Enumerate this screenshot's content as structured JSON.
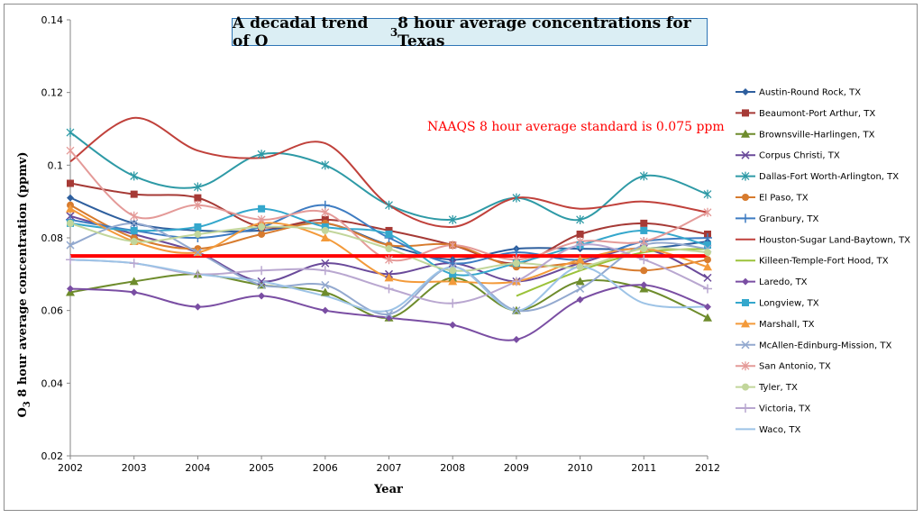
{
  "chart_data": {
    "type": "line",
    "title_prefix": "A decadal trend of O",
    "title_sub": "3",
    "title_suffix": " 8 hour average concentrations for Texas",
    "xlabel": "Year",
    "ylabel_prefix": "O",
    "ylabel_sub": "3",
    "ylabel_suffix": " 8 hour average concentration (ppmv)",
    "annotation": "NAAQS  8 hour average  standard is 0.075 ppm",
    "standard_value": 0.075,
    "standard_color": "#ff0000",
    "x": [
      "2002",
      "2003",
      "2004",
      "2005",
      "2006",
      "2007",
      "2008",
      "2009",
      "2010",
      "2011",
      "2012"
    ],
    "ylim": [
      0.02,
      0.14
    ],
    "yticks": [
      "0.02",
      "0.04",
      "0.06",
      "0.08",
      "0.1",
      "0.12",
      "0.14"
    ],
    "series": [
      {
        "name": "Austin-Round Rock, TX",
        "color": "#2e5f9e",
        "marker": "diamond",
        "values": [
          0.091,
          0.084,
          0.082,
          0.082,
          0.084,
          0.078,
          0.074,
          0.077,
          0.077,
          0.077,
          0.079
        ]
      },
      {
        "name": "Beaumont-Port Arthur, TX",
        "color": "#a63a36",
        "marker": "square",
        "values": [
          0.095,
          0.092,
          0.091,
          0.083,
          0.085,
          0.082,
          0.078,
          0.073,
          0.081,
          0.084,
          0.081
        ]
      },
      {
        "name": "Brownsville-Harlingen, TX",
        "color": "#6e8c2c",
        "marker": "triangle",
        "values": [
          0.065,
          0.068,
          0.07,
          0.067,
          0.065,
          0.058,
          0.069,
          0.06,
          0.068,
          0.066,
          0.058
        ]
      },
      {
        "name": "Corpus Christi, TX",
        "color": "#6a4a9a",
        "marker": "x",
        "values": [
          0.086,
          0.081,
          0.076,
          0.068,
          0.073,
          0.07,
          0.073,
          0.068,
          0.073,
          0.077,
          0.069
        ]
      },
      {
        "name": "Dallas-Fort Worth-Arlington, TX",
        "color": "#2e9aa6",
        "marker": "star",
        "values": [
          0.109,
          0.097,
          0.094,
          0.103,
          0.1,
          0.089,
          0.085,
          0.091,
          0.085,
          0.097,
          0.092
        ]
      },
      {
        "name": "El Paso, TX",
        "color": "#d77b2e",
        "marker": "circle",
        "values": [
          0.089,
          0.08,
          0.077,
          0.081,
          0.084,
          0.078,
          0.078,
          0.072,
          0.073,
          0.071,
          0.074
        ]
      },
      {
        "name": "Granbury, TX",
        "color": "#3e7cc2",
        "marker": "plus",
        "values": [
          0.085,
          0.082,
          0.08,
          0.083,
          0.089,
          0.08,
          0.073,
          0.076,
          0.074,
          0.079,
          0.08
        ]
      },
      {
        "name": "Houston-Sugar Land-Baytown, TX",
        "color": "#c0413b",
        "marker": "none",
        "values": [
          0.101,
          0.113,
          0.104,
          0.102,
          0.106,
          0.089,
          0.083,
          0.091,
          0.088,
          0.09,
          0.087
        ]
      },
      {
        "name": "Killeen-Temple-Fort Hood, TX",
        "color": "#9bc23a",
        "marker": "none",
        "values": [
          null,
          null,
          null,
          null,
          null,
          null,
          null,
          0.064,
          0.071,
          0.076,
          0.077
        ]
      },
      {
        "name": "Laredo, TX",
        "color": "#7a4ea3",
        "marker": "diamond",
        "values": [
          0.066,
          0.065,
          0.061,
          0.064,
          0.06,
          0.058,
          0.056,
          0.052,
          0.063,
          0.067,
          0.061
        ]
      },
      {
        "name": "Longview, TX",
        "color": "#34a7cc",
        "marker": "square",
        "values": [
          0.084,
          0.082,
          0.083,
          0.088,
          0.083,
          0.081,
          0.07,
          0.073,
          0.078,
          0.082,
          0.078
        ]
      },
      {
        "name": "Marshall, TX",
        "color": "#f39a3a",
        "marker": "triangle",
        "values": [
          0.088,
          0.079,
          0.076,
          0.084,
          0.08,
          0.069,
          0.068,
          0.068,
          0.074,
          0.077,
          0.072
        ]
      },
      {
        "name": "McAllen-Edinburg-Mission, TX",
        "color": "#93a9cf",
        "marker": "x",
        "values": [
          0.078,
          0.084,
          0.076,
          0.067,
          0.067,
          0.059,
          0.072,
          0.06,
          0.066,
          0.078,
          0.077
        ]
      },
      {
        "name": "San Antonio, TX",
        "color": "#e49a98",
        "marker": "star",
        "values": [
          0.104,
          0.086,
          0.089,
          0.085,
          0.087,
          0.074,
          0.078,
          0.074,
          0.079,
          0.079,
          0.087
        ]
      },
      {
        "name": "Tyler, TX",
        "color": "#c2d69b",
        "marker": "circle",
        "values": [
          0.084,
          0.079,
          0.081,
          0.083,
          0.082,
          0.077,
          0.071,
          0.073,
          0.072,
          0.077,
          0.076
        ]
      },
      {
        "name": "Victoria, TX",
        "color": "#b9a7d0",
        "marker": "plus",
        "values": [
          0.074,
          0.073,
          0.07,
          0.071,
          0.071,
          0.066,
          0.062,
          0.068,
          0.078,
          0.074,
          0.066
        ]
      },
      {
        "name": "Waco, TX",
        "color": "#9dc3e6",
        "marker": "none",
        "values": [
          0.074,
          0.073,
          0.07,
          0.068,
          0.064,
          0.06,
          0.072,
          0.06,
          0.072,
          0.062,
          0.061
        ]
      }
    ]
  }
}
